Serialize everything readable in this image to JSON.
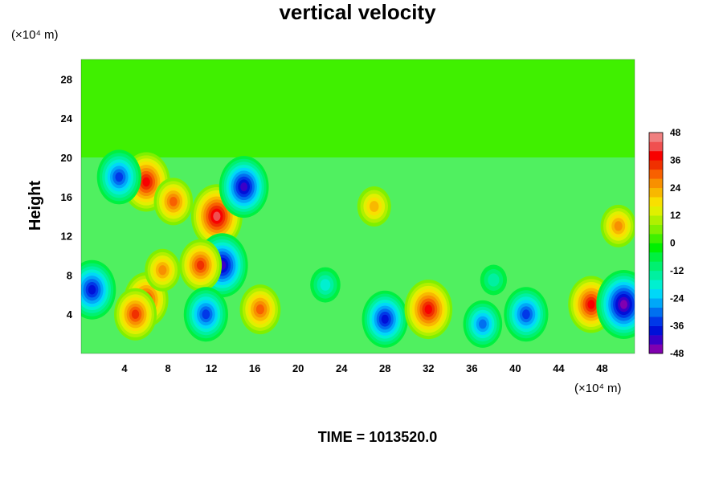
{
  "chart_data": {
    "type": "heatmap",
    "title": "vertical velocity",
    "xlabel": "",
    "ylabel": "Height",
    "x_units": "(×10⁴ m)",
    "y_units": "(×10⁴ m)",
    "footer": "TIME = 1013520.0",
    "xlim": [
      0,
      51
    ],
    "ylim": [
      0,
      30
    ],
    "x_ticks": [
      4,
      8,
      12,
      16,
      20,
      24,
      28,
      32,
      36,
      40,
      44,
      48
    ],
    "y_ticks": [
      4,
      8,
      12,
      16,
      20,
      24,
      28
    ],
    "colorbar": {
      "min": -48,
      "max": 48,
      "step": 4,
      "ticks": [
        -48,
        -36,
        -24,
        -12,
        0,
        12,
        24,
        36,
        48
      ],
      "colors": [
        "#8000b0",
        "#3a00c8",
        "#0010d8",
        "#0038e8",
        "#0070f0",
        "#00a8f8",
        "#00d8f8",
        "#00f0d0",
        "#00f0a0",
        "#00f070",
        "#00f040",
        "#00f000",
        "#40f000",
        "#80f000",
        "#b0f000",
        "#e0f000",
        "#f8e000",
        "#f8b800",
        "#f89000",
        "#f86000",
        "#f03000",
        "#f80000",
        "#f05050",
        "#f08080"
      ]
    },
    "features": [
      {
        "x": 1.0,
        "y": 6.5,
        "value": -36
      },
      {
        "x": 6.0,
        "y": 5.5,
        "value": 32
      },
      {
        "x": 5.0,
        "y": 4.0,
        "value": 30
      },
      {
        "x": 7.5,
        "y": 8.5,
        "value": 22
      },
      {
        "x": 12.5,
        "y": 14.0,
        "value": 40
      },
      {
        "x": 6.0,
        "y": 17.5,
        "value": 36
      },
      {
        "x": 8.5,
        "y": 15.5,
        "value": 26
      },
      {
        "x": 3.5,
        "y": 18.0,
        "value": -32
      },
      {
        "x": 15.0,
        "y": 17.0,
        "value": -38
      },
      {
        "x": 13.0,
        "y": 9.0,
        "value": -40
      },
      {
        "x": 11.0,
        "y": 9.0,
        "value": 30
      },
      {
        "x": 11.5,
        "y": 4.0,
        "value": -32
      },
      {
        "x": 16.5,
        "y": 4.5,
        "value": 28
      },
      {
        "x": 27.0,
        "y": 15.0,
        "value": 20
      },
      {
        "x": 28.0,
        "y": 3.5,
        "value": -34
      },
      {
        "x": 32.0,
        "y": 4.5,
        "value": 36
      },
      {
        "x": 37.0,
        "y": 3.0,
        "value": -26
      },
      {
        "x": 41.0,
        "y": 4.0,
        "value": -32
      },
      {
        "x": 47.0,
        "y": 5.0,
        "value": 34
      },
      {
        "x": 50.0,
        "y": 5.0,
        "value": -44
      },
      {
        "x": 49.5,
        "y": 13.0,
        "value": 22
      },
      {
        "x": 22.5,
        "y": 7.0,
        "value": -16
      },
      {
        "x": 38.0,
        "y": 7.5,
        "value": -12
      }
    ]
  }
}
